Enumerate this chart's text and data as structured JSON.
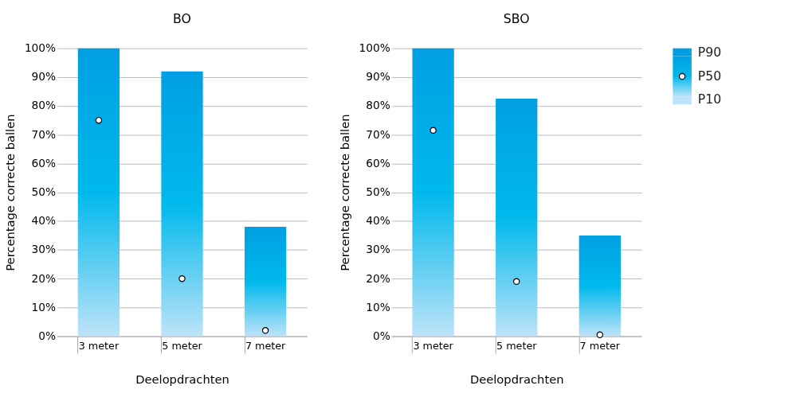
{
  "chart_data": [
    {
      "type": "bar",
      "title": "BO",
      "xlabel": "Deelopdrachten",
      "ylabel": "Percentage correcte ballen",
      "categories": [
        "3 meter",
        "5 meter",
        "7 meter"
      ],
      "ylim": [
        0,
        100
      ],
      "yticks": [
        {
          "value": 0,
          "label": "0%"
        },
        {
          "value": 10,
          "label": "10%"
        },
        {
          "value": 20,
          "label": "20%"
        },
        {
          "value": 30,
          "label": "30%"
        },
        {
          "value": 40,
          "label": "40%"
        },
        {
          "value": 50,
          "label": "50%"
        },
        {
          "value": 60,
          "label": "60%"
        },
        {
          "value": 70,
          "label": "70%"
        },
        {
          "value": 80,
          "label": "80%"
        },
        {
          "value": 90,
          "label": "90%"
        },
        {
          "value": 100,
          "label": "100%"
        }
      ],
      "grid": "y",
      "series": [
        {
          "color": "#009fe3",
          "values": [
            100,
            92,
            38
          ]
        },
        {
          "type": "scatter",
          "color": "#ffffff",
          "values": [
            75,
            20,
            2
          ]
        },
        {
          "color": "#bde3f8",
          "values": [
            0,
            0,
            0
          ]
        }
      ]
    },
    {
      "type": "bar",
      "title": "SBO",
      "xlabel": "Deelopdrachten",
      "ylabel": "Percentage correcte ballen",
      "categories": [
        "3 meter",
        "5 meter",
        "7 meter"
      ],
      "ylim": [
        0,
        100
      ],
      "yticks": [
        {
          "value": 0,
          "label": "0%"
        },
        {
          "value": 10,
          "label": "10%"
        },
        {
          "value": 20,
          "label": "20%"
        },
        {
          "value": 30,
          "label": "30%"
        },
        {
          "value": 40,
          "label": "40%"
        },
        {
          "value": 50,
          "label": "50%"
        },
        {
          "value": 60,
          "label": "60%"
        },
        {
          "value": 70,
          "label": "70%"
        },
        {
          "value": 80,
          "label": "80%"
        },
        {
          "value": 90,
          "label": "90%"
        },
        {
          "value": 100,
          "label": "100%"
        }
      ],
      "grid": "y",
      "legend": "top right",
      "series": [
        {
          "name": "P90",
          "color": "#009fe3",
          "values": [
            100,
            82.5,
            35
          ]
        },
        {
          "name": "P50",
          "type": "scatter",
          "color": "#ffffff",
          "values": [
            71.5,
            19,
            0.5
          ]
        },
        {
          "name": "P10",
          "color": "#bde3f8",
          "values": [
            0,
            0,
            0
          ]
        }
      ]
    }
  ]
}
